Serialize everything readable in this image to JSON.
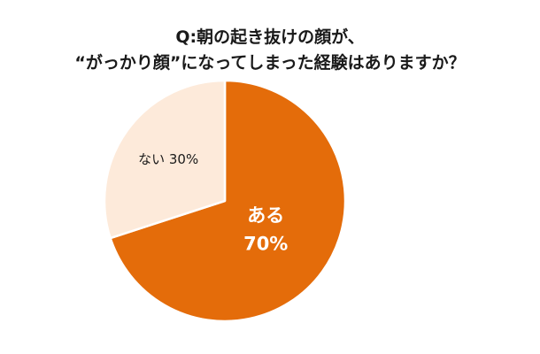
{
  "title": {
    "line1": "Q:朝の起き抜けの顔が、",
    "line2": "“がっかり顔”になってしまった経験はありますか？"
  },
  "chart_data": {
    "type": "pie",
    "title": "Q:朝の起き抜けの顔が、“がっかり顔”になってしまった経験はありますか？",
    "slices": [
      {
        "name": "ある",
        "value": 70,
        "value_label": "70%",
        "color": "#e46c0a",
        "label_color": "#ffffff"
      },
      {
        "name": "ない",
        "value": 30,
        "value_label": "30%",
        "color": "#fdeada",
        "label_color": "#1a1a1a"
      }
    ],
    "start_angle": "12 o'clock",
    "direction": "clockwise",
    "legend": "none"
  }
}
